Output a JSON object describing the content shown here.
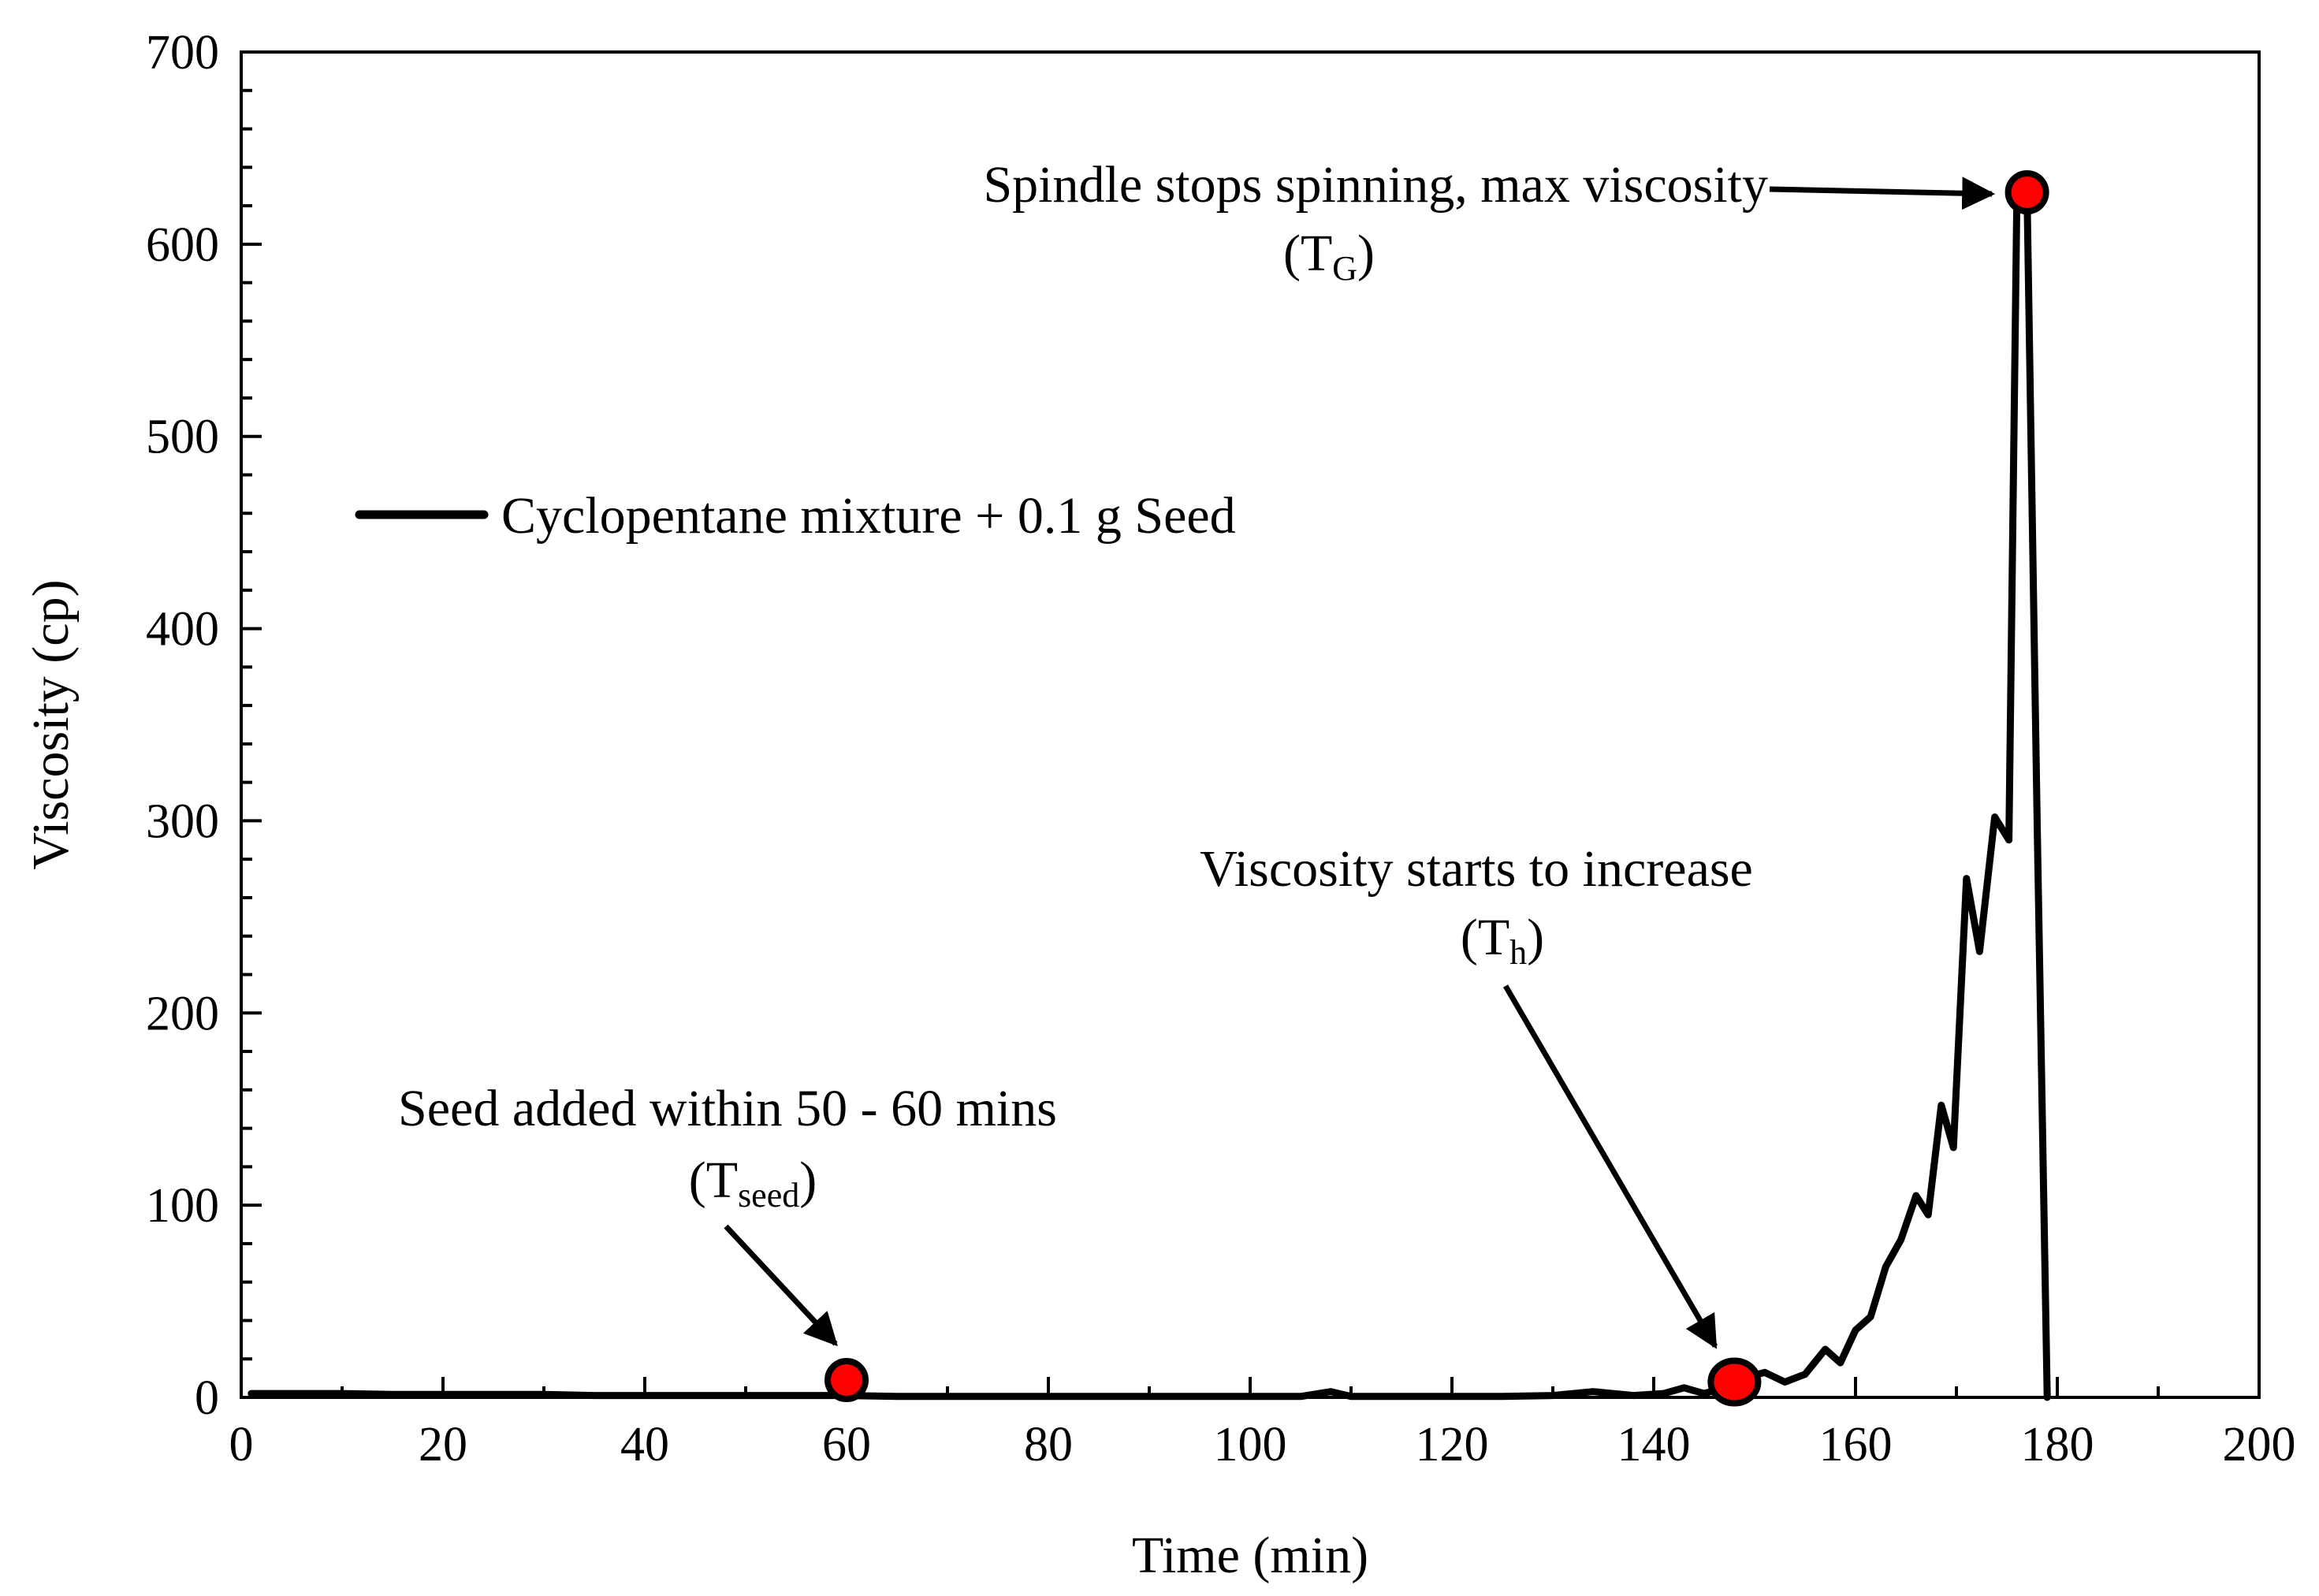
{
  "chart_data": {
    "type": "line",
    "title": "",
    "xlabel": "Time (min)",
    "ylabel": "Viscosity (cp)",
    "xlim": [
      0,
      200
    ],
    "ylim": [
      0,
      700
    ],
    "xticks": [
      0,
      20,
      40,
      60,
      80,
      100,
      120,
      140,
      160,
      180,
      200
    ],
    "yticks": [
      0,
      100,
      200,
      300,
      400,
      500,
      600,
      700
    ],
    "grid": false,
    "legend_position": "left-middle",
    "series": [
      {
        "name": "Cyclopentane mixture + 0.1 g Seed",
        "color": "#000000",
        "x": [
          1,
          5,
          10,
          15,
          20,
          25,
          30,
          35,
          40,
          45,
          50,
          55,
          60,
          65,
          70,
          75,
          80,
          85,
          90,
          95,
          100,
          105,
          108,
          110,
          115,
          120,
          125,
          130,
          134,
          138,
          141,
          143,
          145,
          147,
          149,
          151,
          153,
          155,
          157,
          158.5,
          160,
          161.5,
          163,
          164.5,
          166,
          167.2,
          168.5,
          169.7,
          171,
          172.3,
          173.8,
          175.2,
          176,
          177,
          178,
          179
        ],
        "y": [
          2,
          2,
          2,
          1.5,
          1.5,
          1.5,
          1.5,
          1,
          1,
          1,
          1,
          1,
          1,
          0.5,
          0.5,
          0.5,
          0.5,
          0.5,
          0.5,
          0.5,
          0.5,
          0.5,
          3,
          0.5,
          0.5,
          0.5,
          0.5,
          1,
          3,
          1,
          2,
          5,
          2,
          5,
          10,
          13,
          8,
          12,
          25,
          18,
          35,
          42,
          68,
          82,
          105,
          95,
          152,
          130,
          270,
          232,
          302,
          290,
          627,
          627,
          300,
          0
        ]
      }
    ],
    "markers": [
      {
        "label": "Tseed",
        "x": 60,
        "y": 9,
        "color": "#ff0000"
      },
      {
        "label": "Th",
        "x": 148,
        "y": 8,
        "color": "#ff0000"
      },
      {
        "label": "TG",
        "x": 177,
        "y": 627,
        "color": "#ff0000"
      }
    ],
    "annotations": [
      {
        "id": "seed",
        "line1": "Seed added within 50 - 60 mins",
        "symbol": "T",
        "subscript": "seed"
      },
      {
        "id": "th",
        "line1": "Viscosity starts to increase",
        "symbol": "T",
        "subscript": "h"
      },
      {
        "id": "tg",
        "line1": "Spindle stops spinning, max viscosity",
        "symbol": "T",
        "subscript": "G"
      }
    ]
  }
}
